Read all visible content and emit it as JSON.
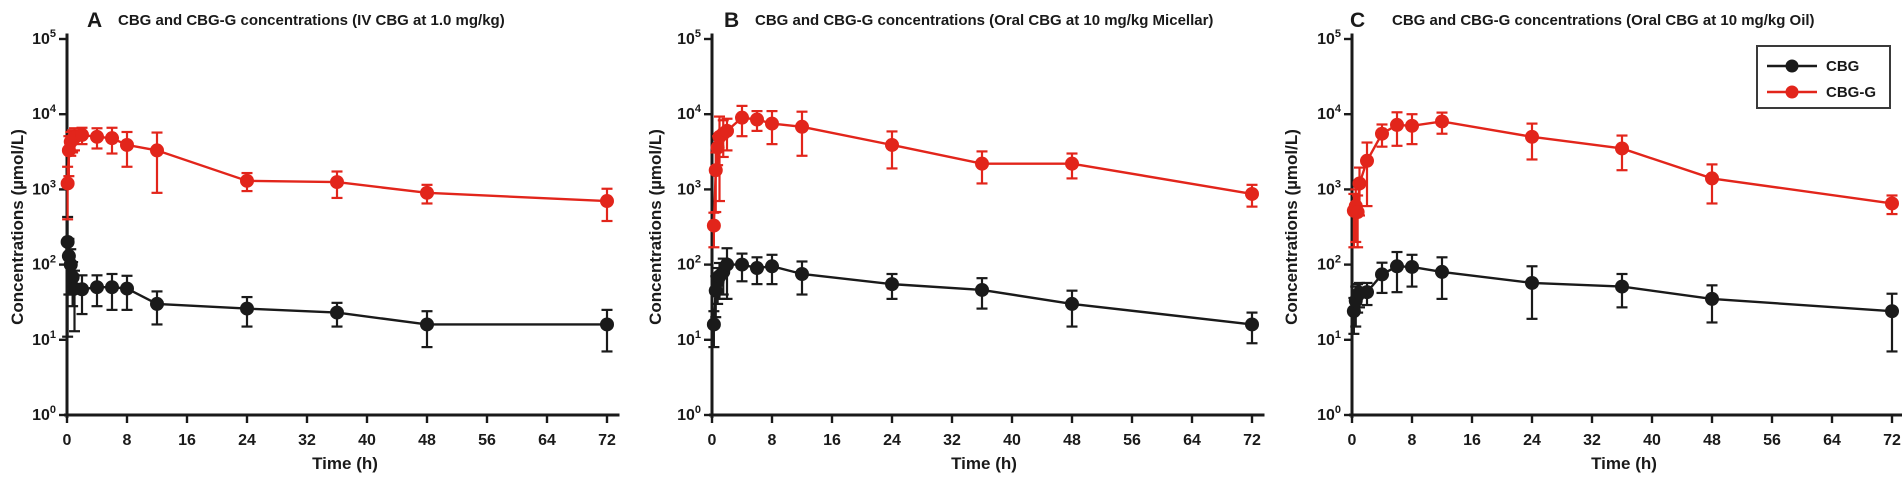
{
  "figure": {
    "xlabel": "Time (h)",
    "ylabel": "Concentrations (µmol/L)",
    "colors": {
      "cbg": "#1a1a1a",
      "cbg_g": "#e2251b"
    },
    "legend": {
      "items": [
        "CBG",
        "CBG-G"
      ],
      "position": "top-right-of-panel-C"
    }
  },
  "chart_data": [
    {
      "type": "line",
      "panel_label": "A",
      "title": "CBG and CBG-G concentrations  (IV CBG at 1.0 mg/kg)",
      "xlabel": "Time (h)",
      "ylabel": "Concentrations (µmol/L)",
      "xlim": [
        0,
        72
      ],
      "ylog_range_exponents": [
        0,
        5
      ],
      "x_ticks": [
        0,
        8,
        16,
        24,
        32,
        40,
        48,
        56,
        64,
        72
      ],
      "y_tick_exponents": [
        0,
        1,
        2,
        3,
        4,
        5
      ],
      "grid": false,
      "legend_visible": false,
      "series": [
        {
          "name": "CBG",
          "color": "#1a1a1a",
          "x": [
            0.083,
            0.25,
            0.5,
            0.75,
            1,
            2,
            4,
            6,
            8,
            12,
            24,
            36,
            48,
            72
          ],
          "y": [
            200,
            130,
            100,
            68,
            48,
            47,
            50,
            50,
            48,
            30,
            26,
            23,
            16,
            16
          ],
          "sd": [
            230,
            90,
            60,
            40,
            35,
            25,
            22,
            25,
            23,
            14,
            11,
            8,
            8,
            9
          ]
        },
        {
          "name": "CBG-G",
          "color": "#e2251b",
          "x": [
            0.083,
            0.25,
            0.5,
            0.75,
            1,
            2,
            4,
            6,
            8,
            12,
            24,
            36,
            48,
            72
          ],
          "y": [
            1200,
            3300,
            4300,
            4600,
            4900,
            5300,
            5000,
            4800,
            3900,
            3300,
            1300,
            1250,
            900,
            700
          ],
          "sd": [
            800,
            1800,
            1500,
            1500,
            1600,
            1300,
            1500,
            1800,
            1900,
            2400,
            350,
            480,
            250,
            320
          ]
        }
      ]
    },
    {
      "type": "line",
      "panel_label": "B",
      "title": "CBG and CBG-G concentrations  (Oral CBG at 10 mg/kg Micellar)",
      "xlabel": "Time (h)",
      "ylabel": "Concentrations (µmol/L)",
      "xlim": [
        0,
        72
      ],
      "ylog_range_exponents": [
        0,
        5
      ],
      "x_ticks": [
        0,
        8,
        16,
        24,
        32,
        40,
        48,
        56,
        64,
        72
      ],
      "y_tick_exponents": [
        0,
        1,
        2,
        3,
        4,
        5
      ],
      "grid": false,
      "legend_visible": false,
      "series": [
        {
          "name": "CBG",
          "color": "#1a1a1a",
          "x": [
            0.25,
            0.5,
            0.75,
            1,
            1.5,
            2,
            4,
            6,
            8,
            12,
            24,
            36,
            48,
            72
          ],
          "y": [
            16,
            45,
            60,
            70,
            80,
            100,
            100,
            90,
            95,
            75,
            55,
            46,
            30,
            16
          ],
          "sd": [
            8,
            25,
            30,
            35,
            40,
            65,
            40,
            35,
            40,
            35,
            20,
            20,
            15,
            7
          ]
        },
        {
          "name": "CBG-G",
          "color": "#e2251b",
          "x": [
            0.25,
            0.5,
            0.75,
            1,
            1.5,
            2,
            4,
            6,
            8,
            12,
            24,
            36,
            48,
            72
          ],
          "y": [
            330,
            1800,
            3600,
            5000,
            5500,
            6000,
            9000,
            8500,
            7500,
            6800,
            3900,
            2200,
            2200,
            870
          ],
          "sd": [
            160,
            1300,
            1500,
            4300,
            2800,
            2700,
            3900,
            2500,
            3500,
            4000,
            2000,
            1000,
            800,
            280
          ]
        }
      ]
    },
    {
      "type": "line",
      "panel_label": "C",
      "title": "CBG and CBG-G concentrations  (Oral CBG at 10 mg/kg Oil)",
      "xlabel": "Time (h)",
      "ylabel": "Concentrations (µmol/L)",
      "xlim": [
        0,
        72
      ],
      "ylog_range_exponents": [
        0,
        5
      ],
      "x_ticks": [
        0,
        8,
        16,
        24,
        32,
        40,
        48,
        56,
        64,
        72
      ],
      "y_tick_exponents": [
        0,
        1,
        2,
        3,
        4,
        5
      ],
      "grid": false,
      "legend_visible": true,
      "series": [
        {
          "name": "CBG",
          "color": "#1a1a1a",
          "x": [
            0.25,
            0.5,
            0.75,
            1,
            2,
            4,
            6,
            8,
            12,
            24,
            36,
            48,
            72
          ],
          "y": [
            24,
            33,
            39,
            42,
            43,
            74,
            95,
            93,
            80,
            57,
            51,
            35,
            24
          ],
          "sd": [
            12,
            18,
            16,
            15,
            14,
            32,
            52,
            42,
            45,
            38,
            24,
            18,
            17
          ]
        },
        {
          "name": "CBG-G",
          "color": "#e2251b",
          "x": [
            0.25,
            0.5,
            0.75,
            1,
            2,
            4,
            6,
            8,
            12,
            24,
            36,
            48,
            72
          ],
          "y": [
            520,
            600,
            500,
            1200,
            2400,
            5500,
            7200,
            7000,
            8000,
            5000,
            3500,
            1400,
            650
          ],
          "sd": [
            350,
            400,
            330,
            750,
            1800,
            1800,
            3400,
            3000,
            2500,
            2500,
            1700,
            750,
            180
          ]
        }
      ]
    }
  ]
}
